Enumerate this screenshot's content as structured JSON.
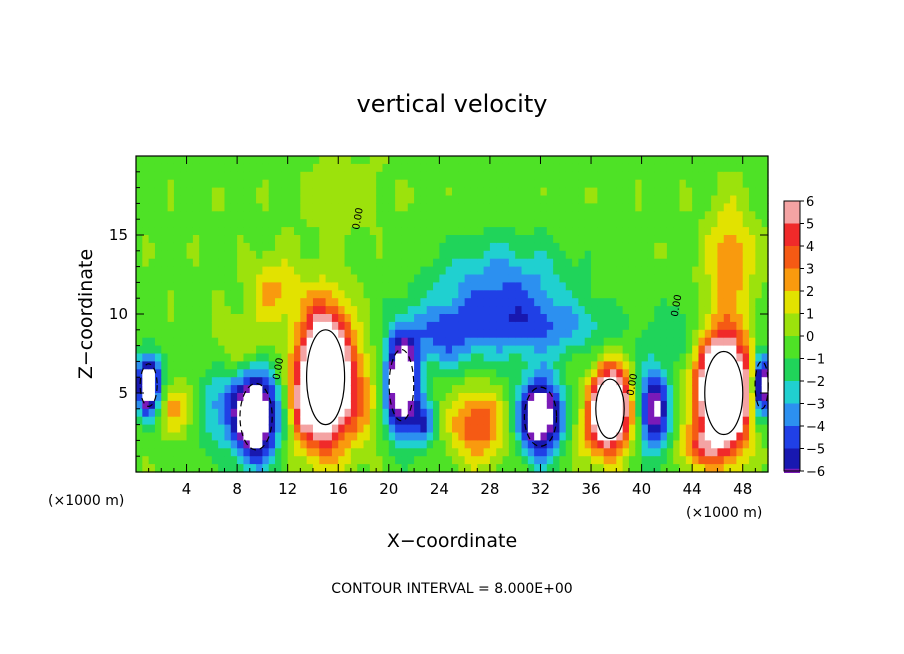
{
  "chart_data": {
    "type": "heatmap",
    "title": "vertical velocity",
    "xlabel": "X−coordinate",
    "ylabel": "Z−coordinate",
    "x_unit_left": "(×1000 m)",
    "x_unit_right": "(×1000 m)",
    "xlim": [
      0,
      50
    ],
    "ylim": [
      0,
      20
    ],
    "x_ticks": [
      4,
      8,
      12,
      16,
      20,
      24,
      28,
      32,
      36,
      40,
      44,
      48
    ],
    "y_ticks": [
      5,
      10,
      15
    ],
    "colorbar": {
      "ticks": [
        "6",
        "5",
        "4",
        "3",
        "2",
        "1",
        "0",
        "−1",
        "−2",
        "−3",
        "−4",
        "−5",
        "−6"
      ],
      "colors": [
        "#f4a3a3",
        "#f02a2a",
        "#f55a14",
        "#f99a0e",
        "#e2e200",
        "#9ce20c",
        "#4ee226",
        "#20d45a",
        "#20d0d0",
        "#2c90f0",
        "#2040e6",
        "#1818b0",
        "#7a1ab8"
      ]
    },
    "contour_interval_text": "CONTOUR INTERVAL = 8.000E+00",
    "contour_label": "0.00",
    "cells": [
      {
        "x": 1.0,
        "z": 5.5,
        "sx": 0.9,
        "sz": 1.8,
        "v": -10
      },
      {
        "x": 3.5,
        "z": 4.0,
        "sx": 1.6,
        "sz": 1.5,
        "v": 3
      },
      {
        "x": 6.5,
        "z": 4.0,
        "sx": 2.2,
        "sz": 2.5,
        "v": -3
      },
      {
        "x": 9.5,
        "z": 3.5,
        "sx": 1.7,
        "sz": 2.8,
        "v": -10
      },
      {
        "x": 11.0,
        "z": 11.5,
        "sx": 2.0,
        "sz": 2.0,
        "v": 2.5
      },
      {
        "x": 8.5,
        "z": 8.0,
        "sx": 2.2,
        "sz": 1.6,
        "v": 1.5
      },
      {
        "x": 15.0,
        "z": 6.0,
        "sx": 2.0,
        "sz": 4.0,
        "v": 14
      },
      {
        "x": 13.0,
        "z": 4.0,
        "sx": 0.9,
        "sz": 2.0,
        "v": 3
      },
      {
        "x": 18.0,
        "z": 4.5,
        "sx": 1.4,
        "sz": 2.8,
        "v": 2
      },
      {
        "x": 21.0,
        "z": 5.5,
        "sx": 1.3,
        "sz": 3.0,
        "v": -10
      },
      {
        "x": 22.8,
        "z": 3.0,
        "sx": 1.0,
        "sz": 1.5,
        "v": -4
      },
      {
        "x": 27.0,
        "z": 3.0,
        "sx": 2.0,
        "sz": 2.2,
        "v": 4.5
      },
      {
        "x": 29.0,
        "z": 11.0,
        "sx": 5.5,
        "sz": 3.5,
        "v": -4
      },
      {
        "x": 24.0,
        "z": 8.5,
        "sx": 3.0,
        "sz": 2.0,
        "v": -3
      },
      {
        "x": 32.0,
        "z": 3.5,
        "sx": 1.7,
        "sz": 2.5,
        "v": -9
      },
      {
        "x": 35.5,
        "z": 2.0,
        "sx": 1.2,
        "sz": 1.5,
        "v": 1.5
      },
      {
        "x": 37.5,
        "z": 4.0,
        "sx": 1.5,
        "sz": 2.5,
        "v": 12
      },
      {
        "x": 41.0,
        "z": 4.0,
        "sx": 1.2,
        "sz": 2.8,
        "v": -7
      },
      {
        "x": 46.5,
        "z": 5.0,
        "sx": 2.0,
        "sz": 3.5,
        "v": 14
      },
      {
        "x": 47.0,
        "z": 13.5,
        "sx": 1.8,
        "sz": 3.5,
        "v": 3
      },
      {
        "x": 49.5,
        "z": 5.5,
        "sx": 0.7,
        "sz": 2.0,
        "v": -9
      },
      {
        "x": 43.0,
        "z": 9.0,
        "sx": 1.5,
        "sz": 2.0,
        "v": -1.5
      },
      {
        "x": 33.0,
        "z": 9.0,
        "sx": 6.0,
        "sz": 1.5,
        "v": -2
      },
      {
        "x": 16.5,
        "z": 17.5,
        "sx": 3.5,
        "sz": 2.5,
        "v": 0.8
      },
      {
        "x": 44.5,
        "z": 1.5,
        "sx": 1.5,
        "sz": 1.2,
        "v": 3
      }
    ]
  }
}
